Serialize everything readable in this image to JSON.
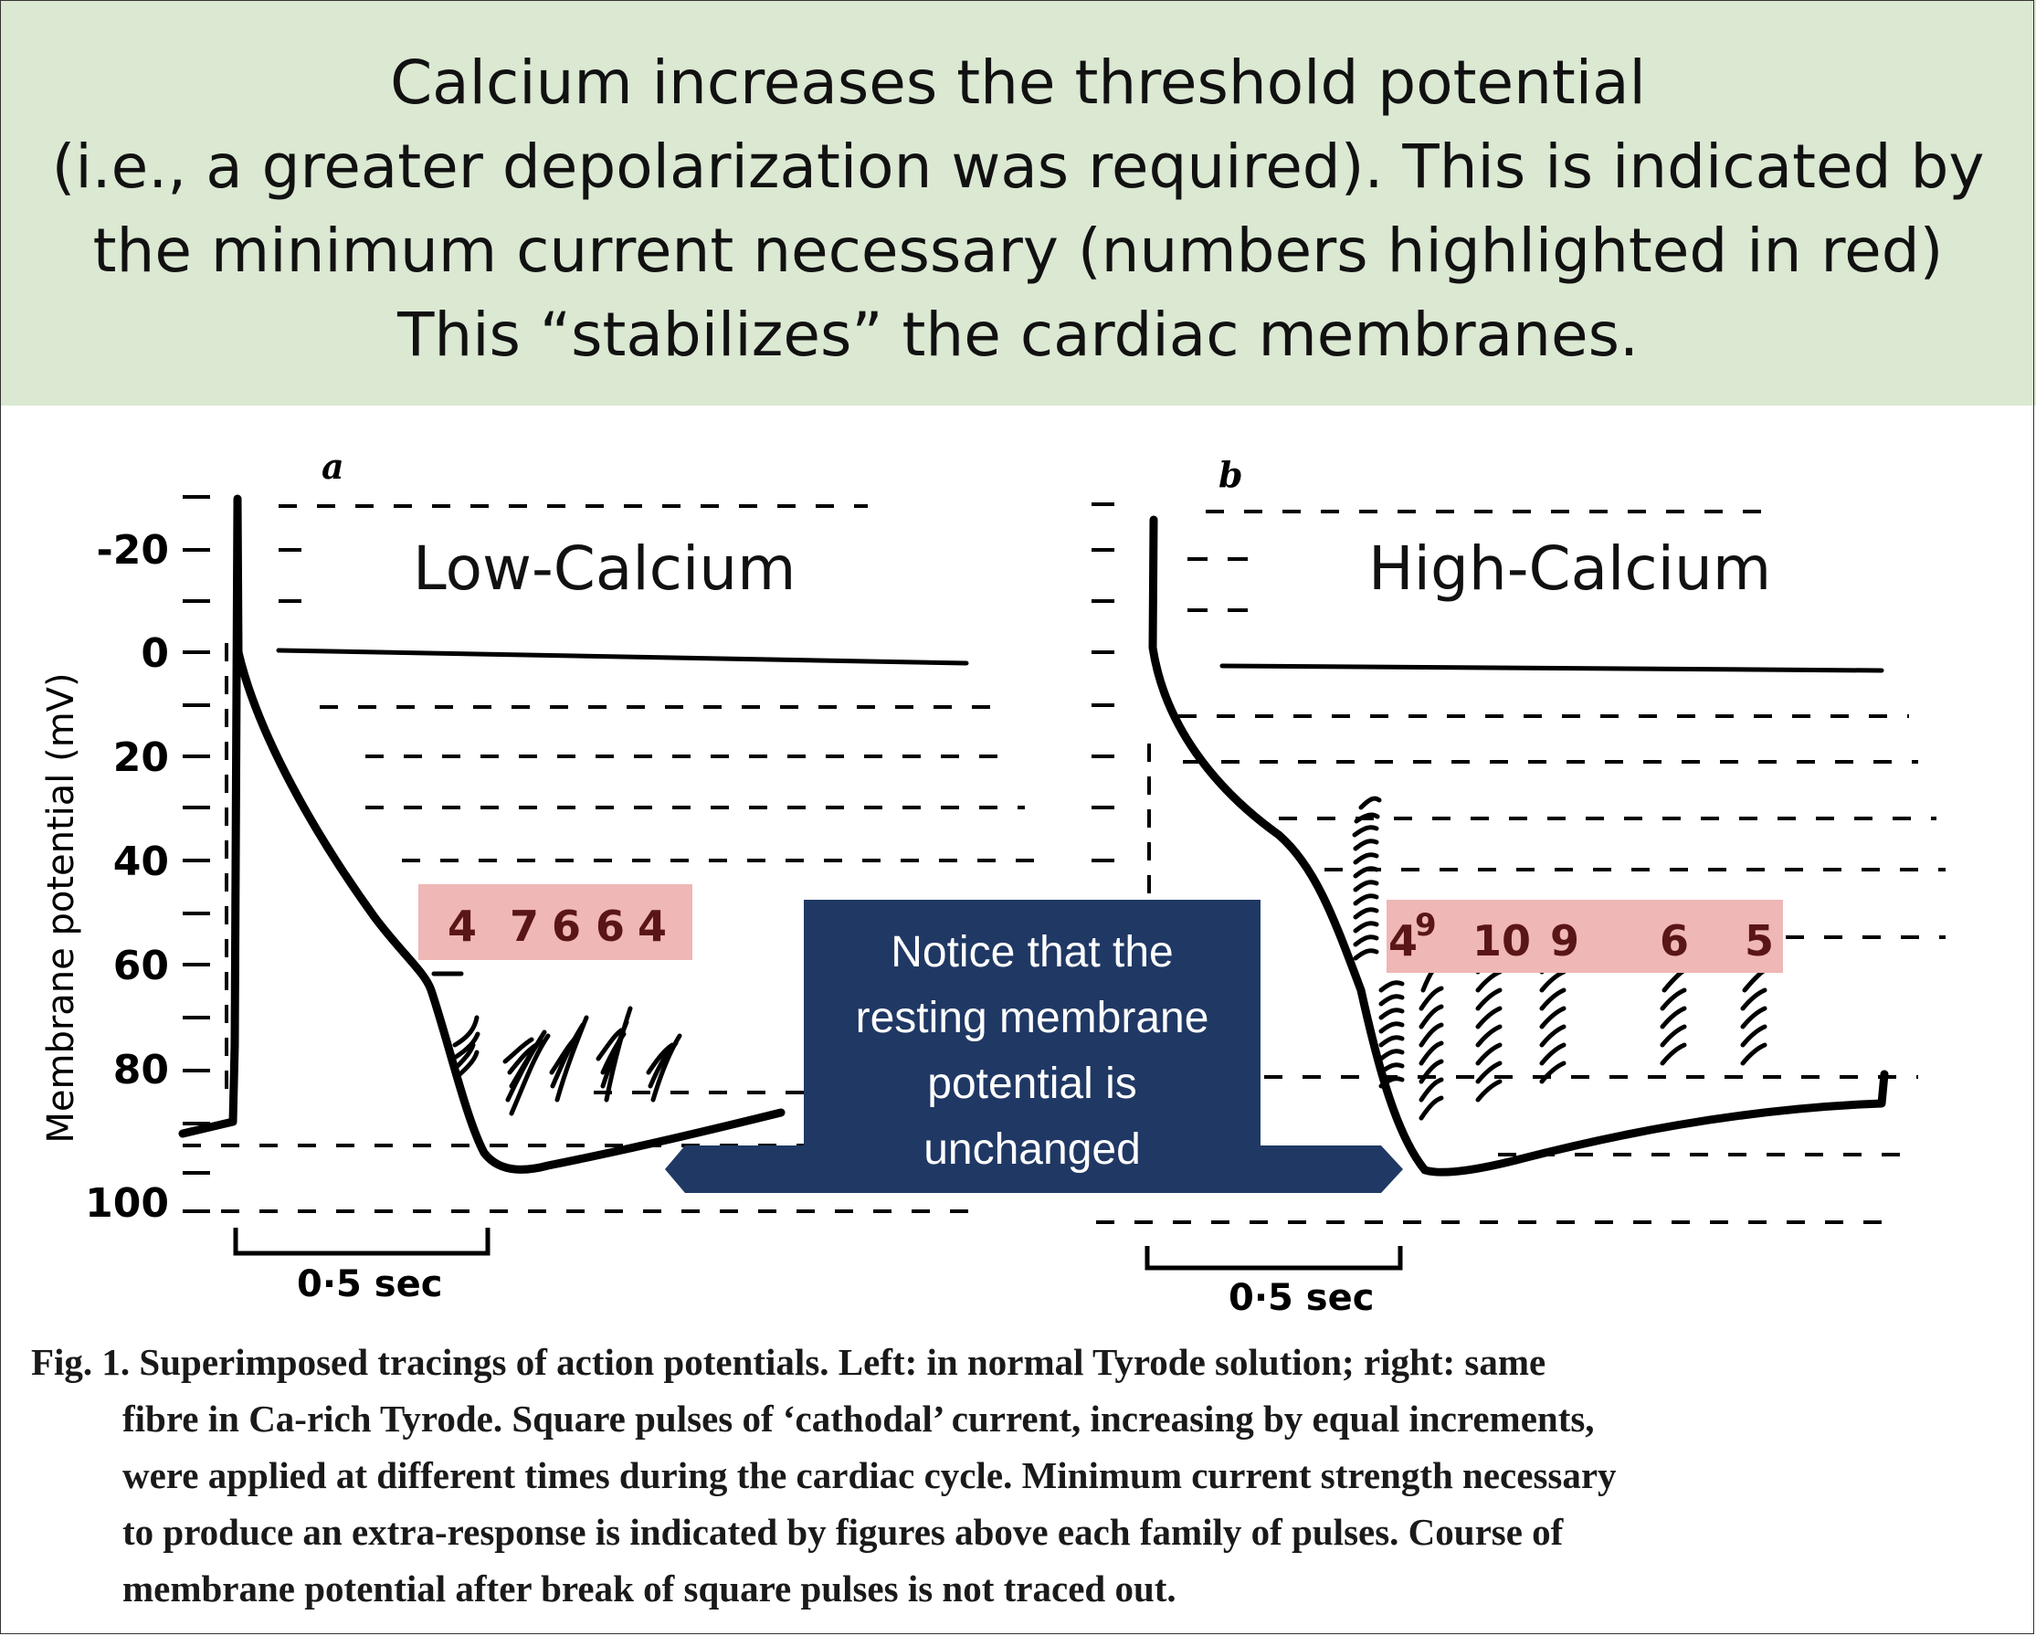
{
  "header": {
    "lines": [
      "Calcium increases the threshold potential",
      "(i.e., a greater depolarization was required). This is indicated by",
      "the minimum current necessary (numbers highlighted in red)",
      "This “stabilizes” the cardiac membranes."
    ]
  },
  "figure": {
    "y_axis_label": "Membrane potential (mV)",
    "y_ticks": [
      "-20",
      "0",
      "20",
      "40",
      "60",
      "80",
      "100"
    ],
    "panel_a": {
      "letter": "a",
      "title": "Low-Calcium",
      "thresholds": [
        "4",
        "7",
        "6",
        "6",
        "4"
      ],
      "scale_label": "0·5 sec"
    },
    "panel_b": {
      "letter": "b",
      "title": "High-Calcium",
      "thresholds": [
        "4",
        "9",
        "10",
        "9",
        "6",
        "5"
      ],
      "scale_label": "0·5 sec"
    },
    "callout": "Notice that the resting membrane potential is unchanged",
    "colors": {
      "header_bg": "#dbe8d2",
      "highlight": "#efb7b5",
      "callout_bg": "#203864",
      "trace": "#000000",
      "threshold_text": "#5a1616"
    }
  },
  "caption": {
    "first_line": "Fig. 1.  Superimposed tracings of action potentials.  Left: in normal Tyrode solution; right: same",
    "lines": [
      "fibre in Ca-rich Tyrode.  Square pulses of ‘cathodal’ current, increasing by equal increments,",
      "were applied at different times during the cardiac cycle.  Minimum current strength necessary",
      "to produce an extra-response is indicated by figures above each family of pulses.  Course of",
      "membrane potential after break of square pulses is not traced out."
    ]
  }
}
